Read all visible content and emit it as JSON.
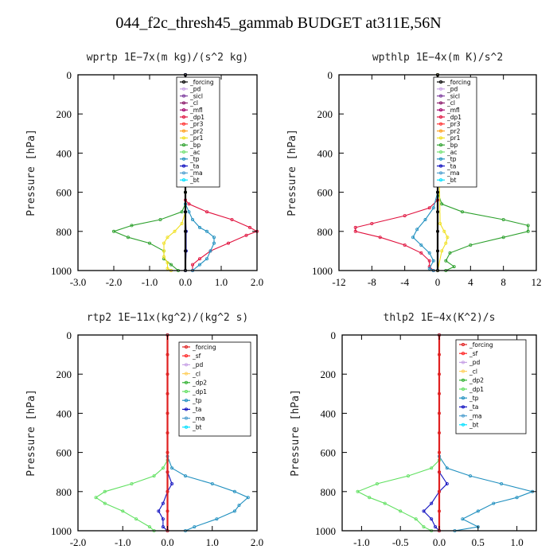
{
  "title": "044_f2c_thresh45_gammab  BUDGET at311E,56N",
  "colors": {
    "forcing": "#000000",
    "pd": "#c8a2e6",
    "sicl": "#7f3f9f",
    "cl": "#8b1a6b",
    "mfl": "#a0006a",
    "dp1": "#e0103c",
    "pr3": "#ff3030",
    "pr2": "#ffa020",
    "pr1": "#f0e020",
    "bp": "#2ca02c",
    "ac": "#70e070",
    "tp": "#1f8fbf",
    "ta": "#1010c0",
    "ma": "#50a0d0",
    "bt": "#00e0ff",
    "sf": "#ff2020",
    "cl2": "#ffd060",
    "dp2": "#30b030",
    "dp1g": "#60e060",
    "forcing_red": "#e02020"
  },
  "chart_data": [
    {
      "type": "line",
      "title": "wprtp   1E−7x(m kg)/(s^2 kg)",
      "ylabel": "Pressure [hPa]",
      "xlim": [
        -3,
        2
      ],
      "ylim": [
        1000,
        0
      ],
      "xticks": [
        "-3.0",
        "-2.0",
        "-1.0",
        "0.0",
        "1.0",
        "2.0"
      ],
      "xtick_values": [
        -3,
        -2,
        -1,
        0,
        1,
        2
      ],
      "yticks": [
        "0",
        "200",
        "400",
        "600",
        "800",
        "1000"
      ],
      "ytick_values": [
        0,
        200,
        400,
        600,
        800,
        1000
      ],
      "legend_position": "top-right",
      "legend": [
        "_forcing",
        "_pd",
        "_sicl",
        "_cl",
        "_mfl",
        "_dp1",
        "_pr3",
        "_pr2",
        "_pr1",
        "_bp",
        "_ac",
        "_tp",
        "_ta",
        "_ma",
        "_bt"
      ],
      "series": [
        {
          "key": "bp",
          "y": [
            0,
            600,
            660,
            700,
            740,
            770,
            800,
            830,
            860,
            900,
            940,
            970,
            1000
          ],
          "x": [
            0,
            0,
            0,
            -0.1,
            -0.7,
            -1.5,
            -2.0,
            -1.6,
            -1.0,
            -0.6,
            -0.6,
            -0.4,
            -0.2
          ]
        },
        {
          "key": "pr1",
          "y": [
            0,
            700,
            760,
            800,
            830,
            860,
            900,
            930,
            960,
            990,
            1000
          ],
          "x": [
            0,
            0,
            -0.1,
            -0.3,
            -0.5,
            -0.6,
            -0.6,
            -0.6,
            -0.5,
            -0.5,
            -0.4
          ]
        },
        {
          "key": "dp1",
          "y": [
            0,
            640,
            660,
            700,
            740,
            780,
            800,
            820,
            860,
            900,
            940,
            970,
            1000
          ],
          "x": [
            0,
            0,
            0.1,
            0.6,
            1.3,
            1.8,
            2.0,
            1.7,
            1.2,
            0.7,
            0.4,
            0.2,
            0.2
          ]
        },
        {
          "key": "tp",
          "y": [
            0,
            660,
            700,
            740,
            780,
            800,
            830,
            860,
            900,
            940,
            970,
            1000
          ],
          "x": [
            0,
            0,
            0.1,
            0.2,
            0.4,
            0.6,
            0.8,
            0.8,
            0.7,
            0.6,
            0.4,
            0.2
          ]
        },
        {
          "key": "ta",
          "y": [
            0,
            700,
            800,
            900,
            1000
          ],
          "x": [
            0,
            0,
            0.02,
            0.02,
            0
          ]
        },
        {
          "key": "forcing",
          "y": [
            0,
            100,
            200,
            300,
            400,
            500,
            600,
            700,
            800,
            900,
            1000
          ],
          "x": [
            0,
            0,
            0,
            0,
            0,
            0,
            0,
            0,
            0,
            0,
            0
          ]
        }
      ]
    },
    {
      "type": "line",
      "title": "wpthlp   1E−4x(m K)/s^2",
      "ylabel": "Pressure [hPa]",
      "xlim": [
        -12,
        12
      ],
      "ylim": [
        1000,
        0
      ],
      "xticks": [
        "-12",
        "-8",
        "-4",
        "0",
        "4",
        "8",
        "12"
      ],
      "xtick_values": [
        -12,
        -8,
        -4,
        0,
        4,
        8,
        12
      ],
      "yticks": [
        "0",
        "200",
        "400",
        "600",
        "800",
        "1000"
      ],
      "ytick_values": [
        0,
        200,
        400,
        600,
        800,
        1000
      ],
      "legend_position": "top-right",
      "legend": [
        "_forcing",
        "_pd",
        "_sicl",
        "_cl",
        "_mfl",
        "_dp1",
        "_pr3",
        "_pr2",
        "_pr1",
        "_bp",
        "_ac",
        "_tp",
        "_ta",
        "_ma",
        "_bt"
      ],
      "series": [
        {
          "key": "bp",
          "y": [
            0,
            600,
            660,
            700,
            740,
            770,
            800,
            830,
            870,
            910,
            950,
            980,
            1000
          ],
          "x": [
            0,
            0,
            0.5,
            3,
            8,
            11,
            11,
            8,
            4,
            1.5,
            1,
            2,
            1
          ]
        },
        {
          "key": "dp1",
          "y": [
            0,
            640,
            680,
            720,
            760,
            780,
            800,
            830,
            870,
            910,
            950,
            980,
            1000
          ],
          "x": [
            0,
            0,
            -1,
            -4,
            -8,
            -10,
            -10,
            -7,
            -4,
            -2,
            -1,
            -1,
            -0.5
          ]
        },
        {
          "key": "tp",
          "y": [
            0,
            600,
            680,
            740,
            790,
            830,
            870,
            910,
            950,
            990,
            1000
          ],
          "x": [
            0,
            0,
            -0.5,
            -1.5,
            -2.5,
            -3,
            -2,
            -1,
            -0.5,
            -1,
            -0.5
          ]
        },
        {
          "key": "pr1",
          "y": [
            0,
            760,
            800,
            830,
            860,
            900,
            1000
          ],
          "x": [
            0,
            0.3,
            0.8,
            1.2,
            1,
            0.5,
            0
          ]
        },
        {
          "key": "forcing",
          "y": [
            0,
            100,
            200,
            300,
            400,
            500,
            600,
            700,
            800,
            900,
            1000
          ],
          "x": [
            0,
            0,
            0,
            0,
            0,
            0,
            0,
            0,
            0,
            0,
            0
          ]
        }
      ]
    },
    {
      "type": "line",
      "title": "rtp2   1E−11x(kg^2)/(kg^2 s)",
      "ylabel": "Pressure [hPa]",
      "xlim": [
        -2,
        2
      ],
      "ylim": [
        1000,
        0
      ],
      "xticks": [
        "-2.0",
        "-1.0",
        "0.0",
        "1.0",
        "2.0"
      ],
      "xtick_values": [
        -2,
        -1,
        0,
        1,
        2
      ],
      "yticks": [
        "0",
        "200",
        "400",
        "600",
        "800",
        "1000"
      ],
      "ytick_values": [
        0,
        200,
        400,
        600,
        800,
        1000
      ],
      "legend_position": "top-right",
      "legend": [
        "_forcing",
        "_sf",
        "_pd",
        "_cl",
        "_dp2",
        "_dp1",
        "_tp",
        "_ta",
        "_ma",
        "_bt"
      ],
      "series": [
        {
          "key": "dp1g",
          "y": [
            0,
            640,
            680,
            720,
            760,
            800,
            830,
            860,
            900,
            940,
            980,
            1000
          ],
          "x": [
            0,
            0,
            -0.1,
            -0.3,
            -0.8,
            -1.4,
            -1.6,
            -1.4,
            -1.0,
            -0.7,
            -0.4,
            -0.3
          ]
        },
        {
          "key": "tp",
          "y": [
            0,
            620,
            680,
            720,
            760,
            800,
            830,
            870,
            900,
            940,
            980,
            1000
          ],
          "x": [
            0,
            0,
            0.1,
            0.4,
            1.0,
            1.5,
            1.8,
            1.6,
            1.5,
            1.1,
            0.6,
            0.4
          ]
        },
        {
          "key": "ta",
          "y": [
            0,
            700,
            760,
            800,
            860,
            900,
            940,
            980,
            1000
          ],
          "x": [
            0,
            0,
            0.1,
            0,
            -0.1,
            -0.2,
            -0.1,
            -0.1,
            0
          ]
        },
        {
          "key": "forcing_red",
          "y": [
            0,
            100,
            200,
            300,
            400,
            500,
            600,
            700,
            800,
            900,
            1000
          ],
          "x": [
            0,
            0,
            0,
            0,
            0,
            0,
            0,
            0,
            0,
            0,
            0
          ]
        }
      ]
    },
    {
      "type": "line",
      "title": "thlp2   1E−4x(K^2)/s",
      "ylabel": "Pressure [hPa]",
      "xlim": [
        -1.25,
        1.25
      ],
      "ylim": [
        1000,
        0
      ],
      "xticks": [
        "-1.0",
        "-0.5",
        "0.0",
        "0.5",
        "1.0"
      ],
      "xtick_values": [
        -1,
        -0.5,
        0,
        0.5,
        1
      ],
      "yticks": [
        "0",
        "200",
        "400",
        "600",
        "800",
        "1000"
      ],
      "ytick_values": [
        0,
        200,
        400,
        600,
        800,
        1000
      ],
      "legend_position": "top-right",
      "legend": [
        "_forcing",
        "_sf",
        "_pd",
        "_cl",
        "_dp2",
        "_dp1",
        "_tp",
        "_ta",
        "_ma",
        "_bt"
      ],
      "series": [
        {
          "key": "dp1g",
          "y": [
            0,
            640,
            680,
            720,
            760,
            800,
            830,
            860,
            900,
            940,
            980,
            1000
          ],
          "x": [
            0,
            0,
            -0.1,
            -0.4,
            -0.8,
            -1.05,
            -0.9,
            -0.7,
            -0.5,
            -0.3,
            -0.2,
            -0.1
          ]
        },
        {
          "key": "tp",
          "y": [
            0,
            620,
            680,
            720,
            760,
            800,
            830,
            860,
            900,
            940,
            980,
            1000
          ],
          "x": [
            0,
            0,
            0.1,
            0.4,
            0.8,
            1.2,
            1.0,
            0.7,
            0.5,
            0.3,
            0.5,
            0.2
          ]
        },
        {
          "key": "ta",
          "y": [
            0,
            700,
            760,
            800,
            860,
            900,
            940,
            980,
            1000
          ],
          "x": [
            0,
            0,
            0.1,
            0,
            -0.1,
            -0.2,
            -0.1,
            -0.05,
            0
          ]
        },
        {
          "key": "forcing_red",
          "y": [
            0,
            100,
            200,
            300,
            400,
            500,
            600,
            700,
            800,
            900,
            1000
          ],
          "x": [
            0,
            0,
            0,
            0,
            0,
            0,
            0,
            0,
            0,
            0,
            0
          ]
        }
      ]
    }
  ]
}
